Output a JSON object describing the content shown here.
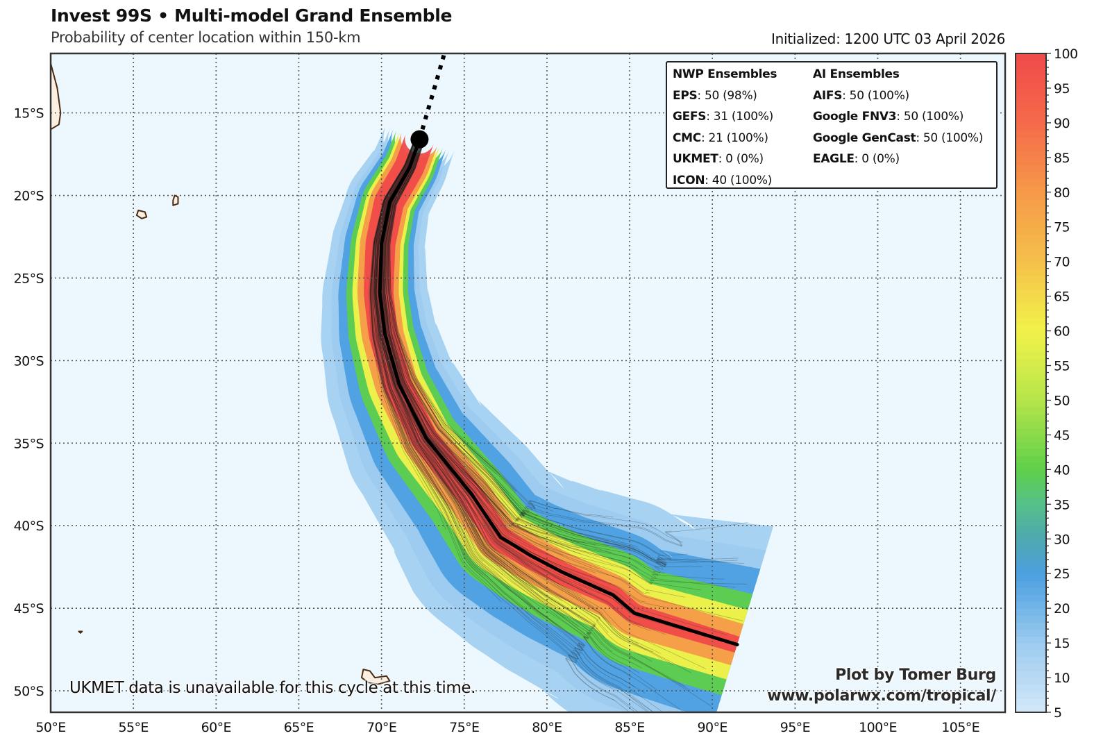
{
  "header": {
    "title": "Invest 99S • Multi-model Grand Ensemble",
    "subtitle": "Probability of center location within 150-km",
    "initialized": "Initialized: 1200 UTC 03 April 2026"
  },
  "legend": {
    "nwp": {
      "heading": "NWP Ensembles",
      "rows": [
        {
          "model": "EPS",
          "value": ": 50 (98%)"
        },
        {
          "model": "GEFS",
          "value": ": 31 (100%)"
        },
        {
          "model": "CMC",
          "value": ": 21 (100%)"
        },
        {
          "model": "UKMET",
          "value": ": 0 (0%)"
        },
        {
          "model": "ICON",
          "value": ": 40 (100%)"
        }
      ]
    },
    "ai": {
      "heading": "AI Ensembles",
      "rows": [
        {
          "model": "AIFS",
          "value": ": 50 (100%)"
        },
        {
          "model": "Google FNV3",
          "value": ": 50 (100%)"
        },
        {
          "model": "Google GenCast",
          "value": ": 50 (100%)"
        },
        {
          "model": "EAGLE",
          "value": ": 0 (0%)"
        }
      ]
    }
  },
  "notes": {
    "unavailable": "UKMET data is unavailable for this cycle at this time.",
    "credit_line1": "Plot by Tomer Burg",
    "credit_line2": "www.polarwx.com/tropical/"
  },
  "chart_data": {
    "type": "heatmap",
    "title": "Invest 99S • Multi-model Grand Ensemble",
    "subtitle": "Probability of center location within 150-km",
    "xlabel": "",
    "ylabel": "",
    "xlim": [
      50,
      107.7
    ],
    "ylim": [
      -51.3,
      -11.4
    ],
    "grid": true,
    "x_ticks": [
      50,
      55,
      60,
      65,
      70,
      75,
      80,
      85,
      90,
      95,
      100,
      105
    ],
    "x_tick_labels": [
      "50°E",
      "55°E",
      "60°E",
      "65°E",
      "70°E",
      "75°E",
      "80°E",
      "85°E",
      "90°E",
      "95°E",
      "100°E",
      "105°E"
    ],
    "y_ticks": [
      -15,
      -20,
      -25,
      -30,
      -35,
      -40,
      -45,
      -50
    ],
    "y_tick_labels": [
      "15°S",
      "20°S",
      "25°S",
      "30°S",
      "35°S",
      "40°S",
      "45°S",
      "50°S"
    ],
    "colorbar": {
      "min": 5,
      "max": 100,
      "ticks": [
        5,
        10,
        15,
        20,
        25,
        30,
        35,
        40,
        45,
        50,
        55,
        60,
        65,
        70,
        75,
        80,
        85,
        90,
        95,
        100
      ],
      "stops": [
        {
          "value": 5,
          "color": "#d4e8f8"
        },
        {
          "value": 15,
          "color": "#9ccbf0"
        },
        {
          "value": 25,
          "color": "#4c9fe0"
        },
        {
          "value": 30,
          "color": "#4ea8b0"
        },
        {
          "value": 35,
          "color": "#55c08a"
        },
        {
          "value": 40,
          "color": "#5ecf4a"
        },
        {
          "value": 50,
          "color": "#b5e54a"
        },
        {
          "value": 60,
          "color": "#f2f24a"
        },
        {
          "value": 70,
          "color": "#f5c04a"
        },
        {
          "value": 80,
          "color": "#f69a48"
        },
        {
          "value": 90,
          "color": "#f56a4a"
        },
        {
          "value": 100,
          "color": "#f04a4a"
        }
      ]
    },
    "current_position": {
      "lon": 72.3,
      "lat": -16.6
    },
    "past_track": [
      {
        "lon": 72.3,
        "lat": -16.6
      },
      {
        "lon": 72.7,
        "lat": -15.2
      },
      {
        "lon": 73.2,
        "lat": -13.5
      },
      {
        "lon": 73.8,
        "lat": -11.4
      }
    ],
    "ensemble_mean_track": [
      {
        "lon": 72.3,
        "lat": -16.6
      },
      {
        "lon": 71.7,
        "lat": -18.3
      },
      {
        "lon": 70.5,
        "lat": -20.4
      },
      {
        "lon": 70.0,
        "lat": -22.9
      },
      {
        "lon": 69.9,
        "lat": -25.9
      },
      {
        "lon": 70.2,
        "lat": -28.4
      },
      {
        "lon": 71.05,
        "lat": -31.4
      },
      {
        "lon": 72.7,
        "lat": -34.7
      },
      {
        "lon": 75.45,
        "lat": -38.1
      },
      {
        "lon": 77.2,
        "lat": -40.7
      },
      {
        "lon": 79.0,
        "lat": -41.8
      },
      {
        "lon": 80.9,
        "lat": -42.8
      },
      {
        "lon": 84.0,
        "lat": -44.2
      },
      {
        "lon": 85.3,
        "lat": -45.3
      },
      {
        "lon": 91.5,
        "lat": -47.2
      }
    ],
    "probability_bands": [
      {
        "level": 5,
        "spread_start_deg": 2.2,
        "spread_end_deg": 7.5
      },
      {
        "level": 15,
        "spread_start_deg": 1.9,
        "spread_end_deg": 6.0
      },
      {
        "level": 25,
        "spread_start_deg": 1.7,
        "spread_end_deg": 4.8
      },
      {
        "level": 40,
        "spread_start_deg": 1.5,
        "spread_end_deg": 3.2
      },
      {
        "level": 60,
        "spread_start_deg": 1.3,
        "spread_end_deg": 2.2
      },
      {
        "level": 80,
        "spread_start_deg": 1.15,
        "spread_end_deg": 1.3
      },
      {
        "level": 95,
        "spread_start_deg": 0.9,
        "spread_end_deg": 0.5
      }
    ],
    "land": [
      {
        "name": "Madagascar (edge)",
        "points": [
          [
            50.0,
            -12.0
          ],
          [
            50.4,
            -13.5
          ],
          [
            50.6,
            -15.0
          ],
          [
            50.5,
            -15.7
          ],
          [
            50.0,
            -16.0
          ]
        ]
      },
      {
        "name": "Reunion",
        "points": [
          [
            55.3,
            -20.9
          ],
          [
            55.7,
            -21.0
          ],
          [
            55.8,
            -21.3
          ],
          [
            55.5,
            -21.4
          ],
          [
            55.2,
            -21.2
          ]
        ]
      },
      {
        "name": "Mauritius",
        "points": [
          [
            57.5,
            -20.0
          ],
          [
            57.7,
            -20.1
          ],
          [
            57.7,
            -20.5
          ],
          [
            57.4,
            -20.6
          ],
          [
            57.4,
            -20.3
          ]
        ]
      },
      {
        "name": "Kerguelen",
        "points": [
          [
            68.9,
            -48.7
          ],
          [
            69.3,
            -48.8
          ],
          [
            69.6,
            -49.2
          ],
          [
            70.3,
            -49.1
          ],
          [
            70.5,
            -49.4
          ],
          [
            69.8,
            -49.6
          ],
          [
            69.2,
            -49.5
          ],
          [
            68.8,
            -49.2
          ]
        ]
      },
      {
        "name": "Crozet",
        "points": [
          [
            51.7,
            -46.4
          ],
          [
            51.9,
            -46.4
          ],
          [
            51.8,
            -46.5
          ]
        ]
      }
    ]
  }
}
